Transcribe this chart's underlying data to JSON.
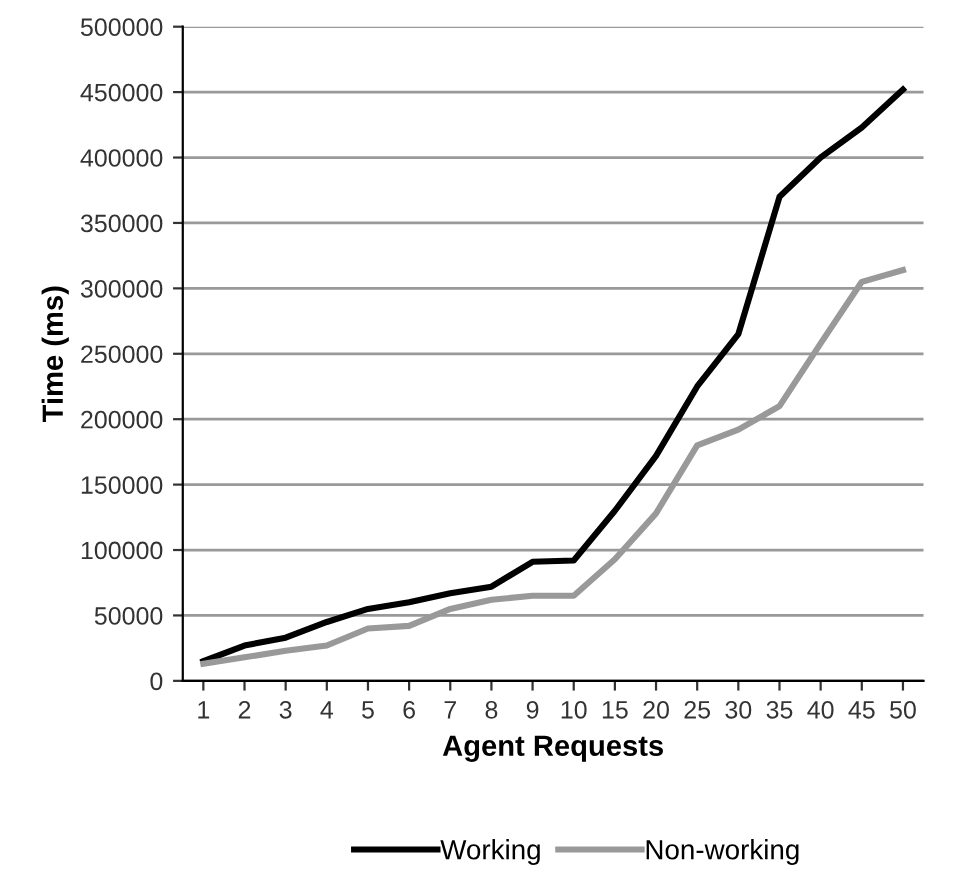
{
  "chart_data": {
    "type": "line",
    "xlabel": "Agent Requests",
    "ylabel": "Time (ms)",
    "categories": [
      "1",
      "2",
      "3",
      "4",
      "5",
      "6",
      "7",
      "8",
      "9",
      "10",
      "15",
      "20",
      "25",
      "30",
      "35",
      "40",
      "45",
      "50"
    ],
    "series": [
      {
        "name": "Working",
        "color": "#000000",
        "values": [
          15000,
          27000,
          33000,
          45000,
          55000,
          60000,
          67000,
          72000,
          91000,
          92000,
          130000,
          172000,
          225000,
          265000,
          370000,
          400000,
          423000,
          452000
        ]
      },
      {
        "name": "Non-working",
        "color": "#999999",
        "values": [
          13000,
          18000,
          23000,
          27000,
          40000,
          42000,
          55000,
          62000,
          65000,
          65000,
          93000,
          128000,
          180000,
          192000,
          210000,
          258000,
          305000,
          314000
        ]
      }
    ],
    "ylim": [
      0,
      500000
    ],
    "yticks": [
      0,
      50000,
      100000,
      150000,
      200000,
      250000,
      300000,
      350000,
      400000,
      450000,
      500000
    ],
    "grid": "y",
    "legend": "bottom",
    "marker": "none",
    "line_style": "solid"
  }
}
